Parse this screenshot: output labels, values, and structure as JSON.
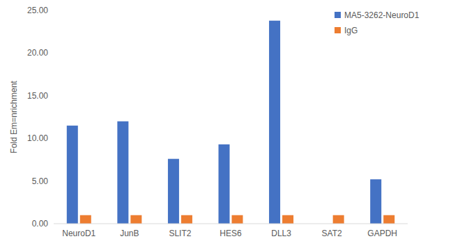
{
  "chart_data": {
    "type": "bar",
    "y_label": "Fold Em=nrichment",
    "categories": [
      "NeuroD1",
      "JunB",
      "SLIT2",
      "HES6",
      "DLL3",
      "SAT2",
      "GAPDH"
    ],
    "series": [
      {
        "name": "MA5-3262-NeuroD1",
        "color": "#4472c4",
        "values": [
          11.5,
          12.0,
          7.6,
          9.3,
          23.8,
          0,
          5.2
        ]
      },
      {
        "name": "IgG",
        "color": "#ed7d31",
        "values": [
          1.0,
          1.0,
          1.0,
          1.0,
          1.0,
          1.0,
          1.0
        ]
      }
    ],
    "ylim": [
      0,
      25
    ],
    "yticks": [
      {
        "value": 0,
        "label": "0.00"
      },
      {
        "value": 5,
        "label": "5.00"
      },
      {
        "value": 10,
        "label": "10.00"
      },
      {
        "value": 15,
        "label": "15.00"
      },
      {
        "value": 20,
        "label": "20.00"
      },
      {
        "value": 25,
        "label": "25.00"
      }
    ],
    "grid": false,
    "legend": "top-right"
  }
}
